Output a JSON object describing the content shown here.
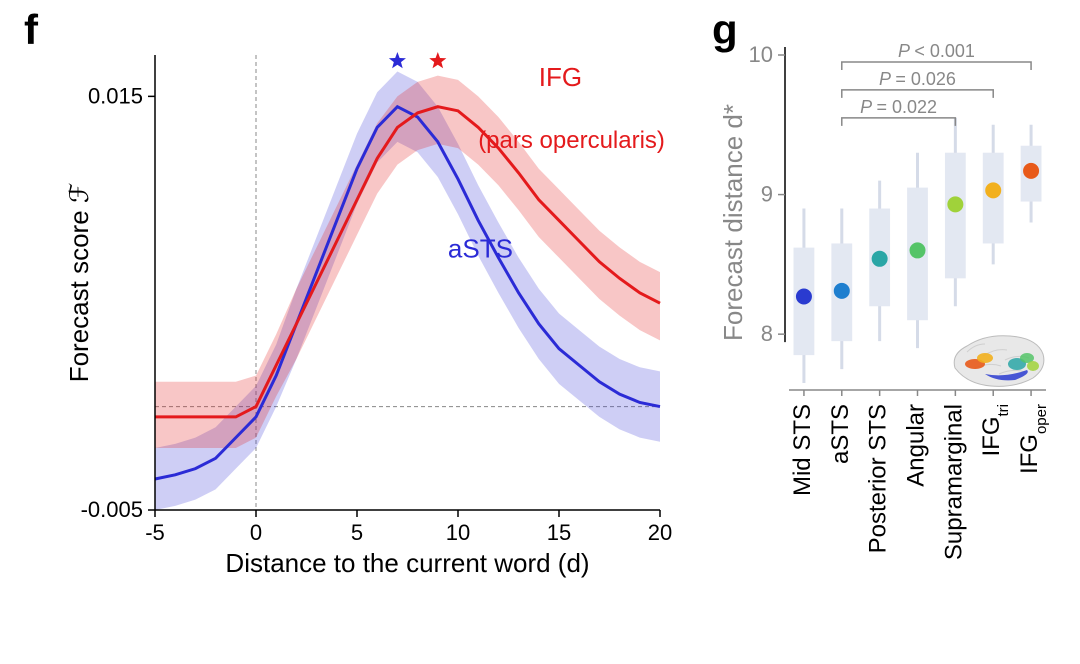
{
  "panel_labels": {
    "f": "f",
    "g": "g"
  },
  "chart_f": {
    "type": "line",
    "xlim": [
      -5,
      20
    ],
    "ylim": [
      -0.005,
      0.017
    ],
    "xticks": [
      -5,
      0,
      5,
      10,
      15,
      20
    ],
    "yticks": [
      -0.005,
      0.015
    ],
    "xlabel": "Distance to the current word (d)",
    "ylabel": "Forecast score ℱ",
    "background": "#ffffff",
    "axis_color": "#000000",
    "grid_dash_color": "#888888",
    "zero_x_line": 0,
    "zero_y_line": 0.0,
    "series": {
      "IFG": {
        "color": "#e41a1c",
        "fill": "rgba(228,26,28,0.25)",
        "label": "IFG",
        "sublabel": "(pars opercularis)",
        "line_width": 3,
        "star_x": 9,
        "x": [
          -5,
          -4,
          -3,
          -2,
          -1,
          0,
          1,
          2,
          3,
          4,
          5,
          6,
          7,
          8,
          9,
          10,
          11,
          12,
          13,
          14,
          15,
          16,
          17,
          18,
          19,
          20
        ],
        "y": [
          -0.0005,
          -0.0005,
          -0.0005,
          -0.0005,
          -0.0005,
          0.0,
          0.002,
          0.004,
          0.006,
          0.008,
          0.01,
          0.012,
          0.0135,
          0.0142,
          0.0145,
          0.0143,
          0.0135,
          0.0125,
          0.0113,
          0.01,
          0.009,
          0.008,
          0.007,
          0.0062,
          0.0055,
          0.005
        ],
        "lo": [
          -0.002,
          -0.002,
          -0.002,
          -0.002,
          -0.002,
          -0.0015,
          0.0005,
          0.0023,
          0.0043,
          0.0063,
          0.0083,
          0.0103,
          0.0117,
          0.0124,
          0.0127,
          0.0125,
          0.0117,
          0.0107,
          0.0095,
          0.0082,
          0.0072,
          0.0062,
          0.0052,
          0.0044,
          0.0037,
          0.0032
        ],
        "hi": [
          0.0012,
          0.0012,
          0.0012,
          0.0012,
          0.0012,
          0.0015,
          0.0035,
          0.0057,
          0.0077,
          0.0097,
          0.0117,
          0.0137,
          0.015,
          0.0157,
          0.016,
          0.0158,
          0.015,
          0.014,
          0.0128,
          0.0115,
          0.0105,
          0.0095,
          0.0085,
          0.0077,
          0.007,
          0.0065
        ]
      },
      "aSTS": {
        "color": "#2b2bd6",
        "fill": "rgba(60,60,214,0.25)",
        "label": "aSTS",
        "line_width": 3,
        "star_x": 7,
        "x": [
          -5,
          -4,
          -3,
          -2,
          -1,
          0,
          1,
          2,
          3,
          4,
          5,
          6,
          7,
          8,
          9,
          10,
          11,
          12,
          13,
          14,
          15,
          16,
          17,
          18,
          19,
          20
        ],
        "y": [
          -0.0035,
          -0.0033,
          -0.003,
          -0.0025,
          -0.0015,
          -0.0005,
          0.0015,
          0.004,
          0.0065,
          0.009,
          0.0115,
          0.0135,
          0.0145,
          0.014,
          0.0128,
          0.011,
          0.009,
          0.0072,
          0.0055,
          0.004,
          0.0028,
          0.002,
          0.0012,
          0.0006,
          0.0002,
          0.0
        ],
        "lo": [
          -0.005,
          -0.0048,
          -0.0045,
          -0.004,
          -0.003,
          -0.002,
          0.0,
          0.0023,
          0.0048,
          0.0073,
          0.0098,
          0.0118,
          0.0128,
          0.0123,
          0.0111,
          0.0093,
          0.0073,
          0.0055,
          0.0038,
          0.0023,
          0.0011,
          0.0003,
          -0.0005,
          -0.0011,
          -0.0015,
          -0.0017
        ],
        "hi": [
          -0.002,
          -0.0018,
          -0.0015,
          -0.001,
          0.0,
          0.001,
          0.003,
          0.0057,
          0.0082,
          0.0107,
          0.0132,
          0.0152,
          0.0162,
          0.0157,
          0.0145,
          0.0127,
          0.0107,
          0.0089,
          0.0072,
          0.0057,
          0.0045,
          0.0037,
          0.0029,
          0.0023,
          0.0019,
          0.0017
        ]
      }
    }
  },
  "chart_g": {
    "type": "boxplot-dot",
    "xlabel": "",
    "ylabel": "Forecast distance d*",
    "ylim": [
      7.6,
      10
    ],
    "yticks": [
      8,
      9,
      10
    ],
    "background": "#ffffff",
    "axis_color": "#000000",
    "box_fill": "#e3e8f2",
    "whisker_color": "#d5dbe8",
    "categories": [
      "Mid STS",
      "aSTS",
      "Posterior STS",
      "Angular",
      "Supramarginal",
      "IFGₜᵣᵢ",
      "IFGₒₚₑᵣ"
    ],
    "cat_labels_plain": [
      "Mid STS",
      "aSTS",
      "Posterior STS",
      "Angular",
      "Supramarginal"
    ],
    "cat_labels_sub": [
      {
        "base": "IFG",
        "sub": "tri"
      },
      {
        "base": "IFG",
        "sub": "oper"
      }
    ],
    "points": [
      {
        "y": 8.27,
        "color": "#2a3bd0",
        "box_lo": 7.85,
        "box_hi": 8.62,
        "wh_lo": 7.65,
        "wh_hi": 8.9
      },
      {
        "y": 8.31,
        "color": "#1f7fcf",
        "box_lo": 7.95,
        "box_hi": 8.65,
        "wh_lo": 7.75,
        "wh_hi": 8.9
      },
      {
        "y": 8.54,
        "color": "#2aa6a6",
        "box_lo": 8.2,
        "box_hi": 8.9,
        "wh_lo": 7.95,
        "wh_hi": 9.1
      },
      {
        "y": 8.6,
        "color": "#55c468",
        "box_lo": 8.1,
        "box_hi": 9.05,
        "wh_lo": 7.9,
        "wh_hi": 9.3
      },
      {
        "y": 8.93,
        "color": "#a0d23a",
        "box_lo": 8.4,
        "box_hi": 9.3,
        "wh_lo": 8.2,
        "wh_hi": 9.55
      },
      {
        "y": 9.03,
        "color": "#f2b01e",
        "box_lo": 8.65,
        "box_hi": 9.3,
        "wh_lo": 8.5,
        "wh_hi": 9.5
      },
      {
        "y": 9.17,
        "color": "#e85a1a",
        "box_lo": 8.95,
        "box_hi": 9.35,
        "wh_lo": 8.8,
        "wh_hi": 9.5
      }
    ],
    "brackets": [
      {
        "from": 1,
        "to": 4,
        "y": 9.55,
        "label": "P = 0.022"
      },
      {
        "from": 1,
        "to": 5,
        "y": 9.75,
        "label": "P = 0.026"
      },
      {
        "from": 1,
        "to": 6,
        "y": 9.95,
        "label": "P < 0.001"
      }
    ],
    "brain_inset": true
  }
}
